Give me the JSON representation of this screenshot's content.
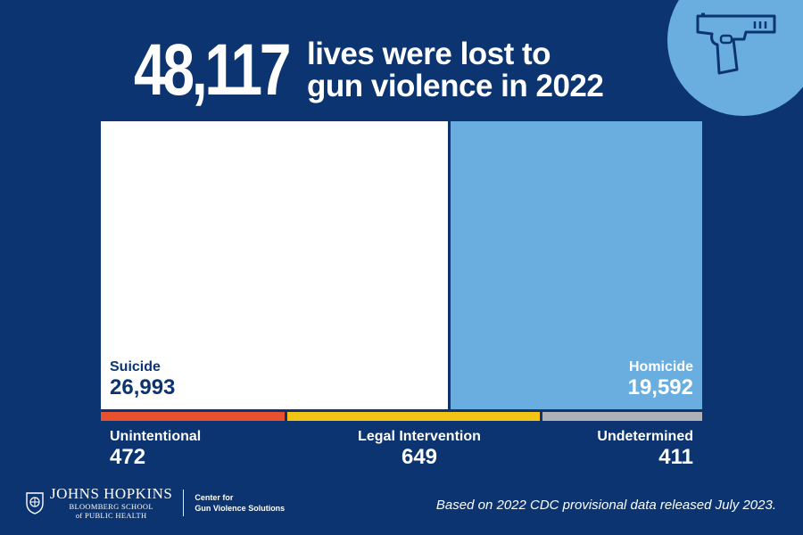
{
  "header": {
    "big_number": "48,117",
    "line1": "lives were lost to",
    "line2": "gun violence in 2022"
  },
  "icon": "handgun-icon",
  "chart_data": {
    "type": "treemap",
    "total": 48117,
    "series": [
      {
        "name": "Suicide",
        "value": 26993,
        "value_label": "26,993",
        "color": "#ffffff",
        "text_color": "#0b3470"
      },
      {
        "name": "Homicide",
        "value": 19592,
        "value_label": "19,592",
        "color": "#6aaee0",
        "text_color": "#ffffff"
      },
      {
        "name": "Unintentional",
        "value": 472,
        "value_label": "472",
        "color": "#e8502e",
        "text_color": "#ffffff"
      },
      {
        "name": "Legal Intervention",
        "value": 649,
        "value_label": "649",
        "color": "#f3c316",
        "text_color": "#ffffff"
      },
      {
        "name": "Undetermined",
        "value": 411,
        "value_label": "411",
        "color": "#aeb2b6",
        "text_color": "#ffffff"
      }
    ]
  },
  "footer": {
    "org_name": "JOHNS HOPKINS",
    "org_sub1": "BLOOMBERG SCHOOL",
    "org_sub2": "of PUBLIC HEALTH",
    "center_line1": "Center for",
    "center_line2": "Gun Violence Solutions",
    "source": "Based on 2022 CDC provisional data released July 2023."
  }
}
